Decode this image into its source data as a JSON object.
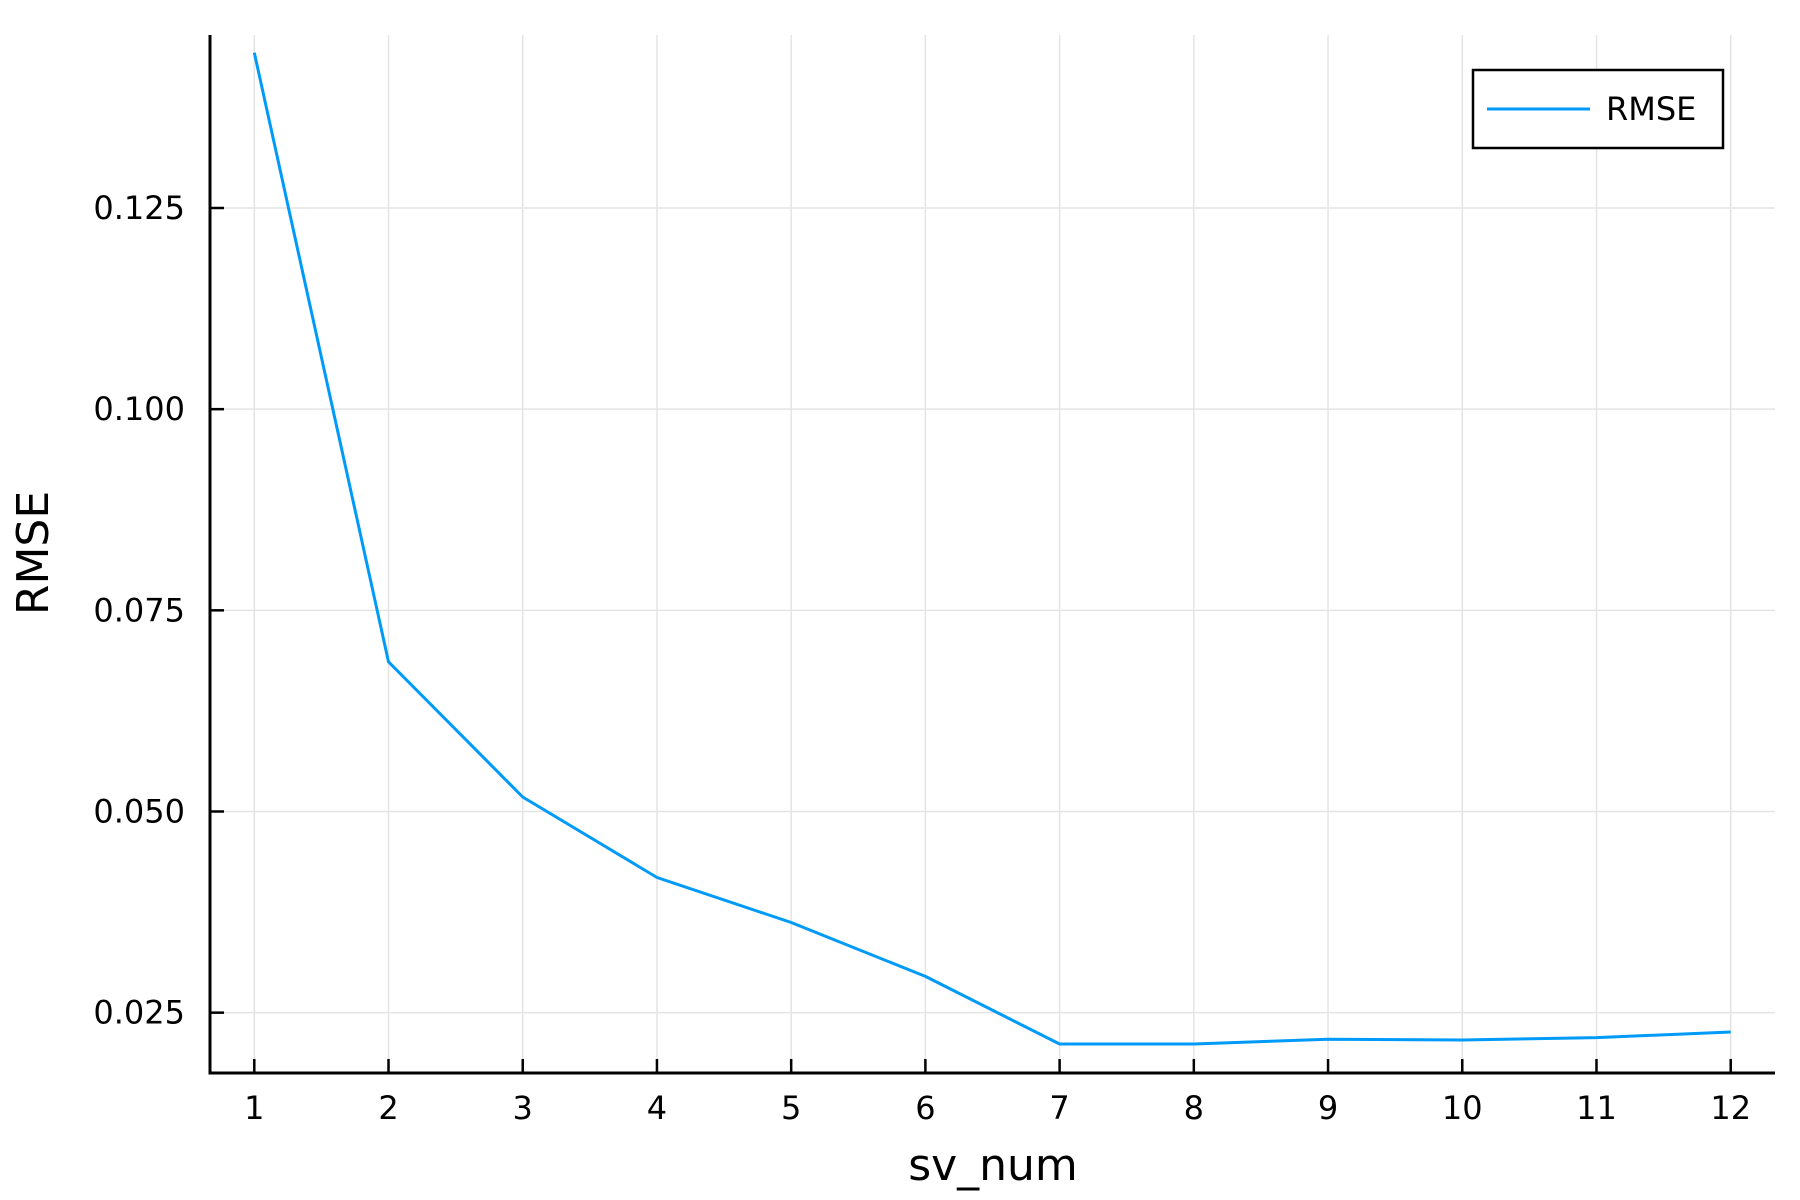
{
  "chart_data": {
    "type": "line",
    "title": "",
    "xlabel": "sv_num",
    "ylabel": "RMSE",
    "xlim": [
      0.67,
      12.33
    ],
    "ylim": [
      0.0175,
      0.1465
    ],
    "xticks": [
      1,
      2,
      3,
      4,
      5,
      6,
      7,
      8,
      9,
      10,
      11,
      12
    ],
    "xtick_labels": [
      "1",
      "2",
      "3",
      "4",
      "5",
      "6",
      "7",
      "8",
      "9",
      "10",
      "11",
      "12"
    ],
    "yticks": [
      0.025,
      0.05,
      0.075,
      0.1,
      0.125
    ],
    "ytick_labels": [
      "0.025",
      "0.050",
      "0.075",
      "0.100",
      "0.125"
    ],
    "grid": true,
    "legend_position": "top-right",
    "series": [
      {
        "name": "RMSE",
        "color": "#009af9",
        "x": [
          1,
          2,
          3,
          4,
          5,
          6,
          7,
          8,
          9,
          10,
          11,
          12
        ],
        "values": [
          0.1443,
          0.0686,
          0.0518,
          0.0418,
          0.0362,
          0.0295,
          0.0211,
          0.0211,
          0.0217,
          0.0216,
          0.0219,
          0.0226
        ]
      }
    ]
  }
}
